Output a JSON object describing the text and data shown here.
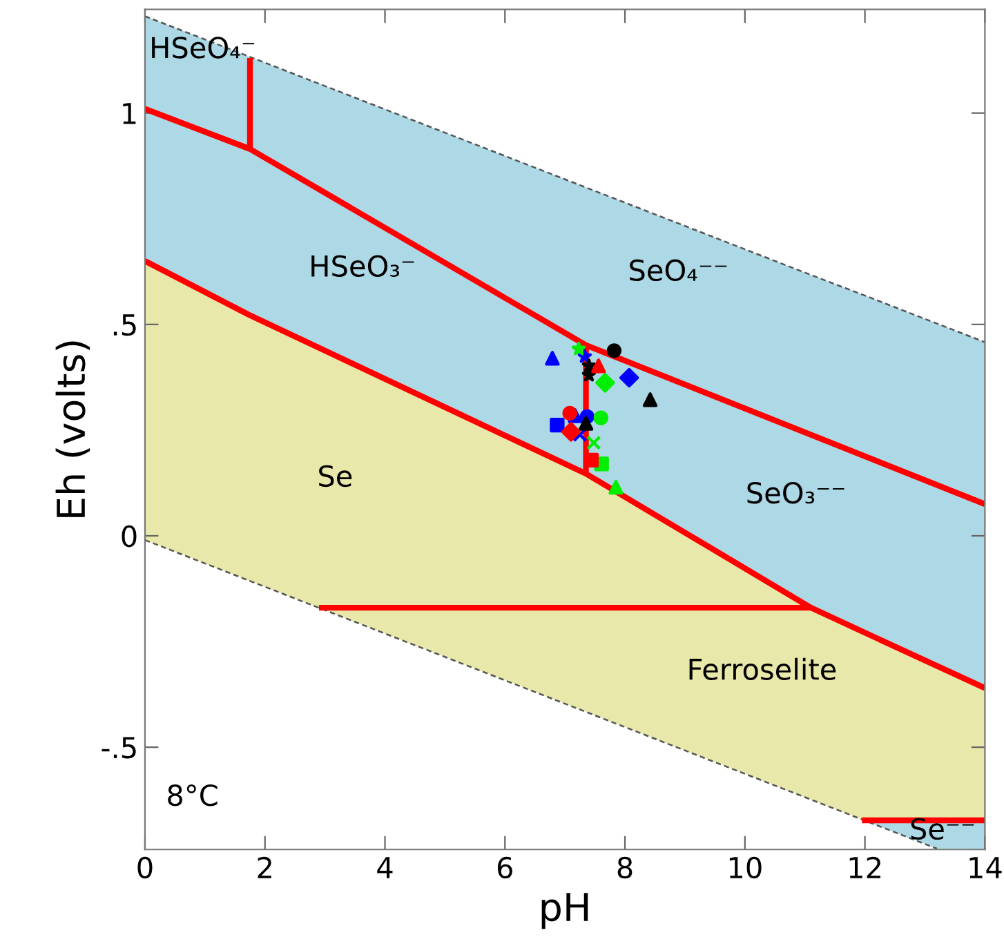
{
  "chart_data": {
    "type": "scatter",
    "xlabel": "pH",
    "ylabel": "Eh (volts)",
    "xlim": [
      0,
      14
    ],
    "ylim": [
      -0.742,
      1.245
    ],
    "xticks": [
      0,
      2,
      4,
      6,
      8,
      10,
      12,
      14
    ],
    "yticks": [
      {
        "value": -0.5,
        "label": "-.5"
      },
      0,
      {
        "value": 0.5,
        "label": ".5"
      },
      1
    ],
    "grid": false,
    "legend": false,
    "series": [
      {
        "type": "line",
        "color": "#555555",
        "line_style": "dashed",
        "x": [
          0,
          1.73,
          7.35,
          11.1,
          11.95,
          14
        ],
        "values": [
          1.229,
          1.134,
          0.824,
          0.617,
          0.571,
          0.458
        ],
        "lower": [
          0.65,
          0.523,
          0.147,
          -0.17,
          -0.226,
          -0.36
        ],
        "upper": [
          1.229,
          1.134,
          0.824,
          0.617,
          0.571,
          0.458
        ]
      },
      {
        "type": "line",
        "color": "#555555",
        "line_style": "dashed",
        "x": [
          0,
          13.2
        ],
        "values": [
          -0.01,
          -0.74
        ]
      },
      {
        "type": "line",
        "color": "#ff0000",
        "line_style": "solid",
        "x": [
          0,
          1.73,
          7.35,
          11.1,
          11.95,
          14
        ],
        "values": [
          0.65,
          0.523,
          0.147,
          -0.17,
          -0.226,
          -0.36
        ],
        "lower": [
          -0.01,
          -0.106,
          -0.416,
          -0.624,
          -0.671,
          -0.673
        ],
        "upper": [
          0.65,
          0.523,
          0.147,
          -0.17,
          -0.226,
          -0.36
        ]
      },
      {
        "type": "line",
        "color": "#ff0000",
        "line_style": "solid",
        "x": [
          11.95,
          13.2,
          14
        ],
        "values": [
          -0.673,
          -0.673,
          -0.673
        ],
        "lower": [
          -0.671,
          -0.74,
          -0.742
        ],
        "upper": [
          -0.673,
          -0.673,
          -0.673
        ]
      },
      {
        "type": "line",
        "color": "#ff0000",
        "line_style": "solid",
        "x": [
          0,
          1.75,
          7.35,
          14
        ],
        "values": [
          1.01,
          0.915,
          0.451,
          0.075
        ]
      },
      {
        "type": "line",
        "color": "#ff0000",
        "line_style": "solid",
        "x": [
          1.75,
          1.75
        ],
        "values": [
          0.915,
          1.13
        ]
      },
      {
        "type": "line",
        "color": "#ff0000",
        "line_style": "solid",
        "x": [
          7.35,
          7.35
        ],
        "values": [
          0.147,
          0.451
        ]
      },
      {
        "type": "line",
        "color": "#ff0000",
        "line_style": "solid",
        "x": [
          2.9,
          11.1
        ],
        "values": [
          -0.17,
          -0.17
        ]
      },
      {
        "color": "#0000ff",
        "marker": "triangle",
        "x": [
          6.79,
          7.17
        ],
        "values": [
          0.42,
          0.284
        ]
      },
      {
        "color": "#0000ff",
        "marker": "star",
        "x": [
          7.33
        ],
        "values": [
          0.424
        ]
      },
      {
        "color": "#0000ff",
        "marker": "diamond",
        "x": [
          8.07
        ],
        "values": [
          0.374
        ]
      },
      {
        "color": "#0000ff",
        "marker": "circle",
        "x": [
          7.37
        ],
        "values": [
          0.282
        ]
      },
      {
        "color": "#0000ff",
        "marker": "square",
        "x": [
          6.87
        ],
        "values": [
          0.262
        ]
      },
      {
        "color": "#0000ff",
        "marker": "cross",
        "x": [
          7.25
        ],
        "values": [
          0.239
        ]
      },
      {
        "color": "#00ee00",
        "marker": "star",
        "x": [
          7.23
        ],
        "values": [
          0.442
        ]
      },
      {
        "color": "#00ee00",
        "marker": "diamond",
        "x": [
          7.67
        ],
        "values": [
          0.362
        ]
      },
      {
        "color": "#00ee00",
        "marker": "circle",
        "x": [
          7.6
        ],
        "values": [
          0.279
        ]
      },
      {
        "color": "#00ee00",
        "marker": "cross",
        "x": [
          7.48
        ],
        "values": [
          0.22
        ]
      },
      {
        "color": "#00ee00",
        "marker": "square",
        "x": [
          7.61
        ],
        "values": [
          0.17
        ]
      },
      {
        "color": "#00ee00",
        "marker": "triangle",
        "x": [
          7.85
        ],
        "values": [
          0.115
        ]
      },
      {
        "color": "#000000",
        "marker": "circle",
        "x": [
          7.82
        ],
        "values": [
          0.438
        ]
      },
      {
        "color": "#000000",
        "marker": "star",
        "x": [
          7.4,
          7.4
        ],
        "values": [
          0.402,
          0.38
        ]
      },
      {
        "color": "#000000",
        "marker": "triangle",
        "x": [
          8.42,
          7.35
        ],
        "values": [
          0.322,
          0.266
        ]
      },
      {
        "color": "#ff0000",
        "marker": "triangle",
        "x": [
          7.56
        ],
        "values": [
          0.402
        ]
      },
      {
        "color": "#ff0000",
        "marker": "circle",
        "x": [
          7.08
        ],
        "values": [
          0.29
        ]
      },
      {
        "color": "#ff0000",
        "marker": "diamond",
        "x": [
          7.1
        ],
        "values": [
          0.246
        ]
      },
      {
        "color": "#ff0000",
        "marker": "square",
        "x": [
          7.44
        ],
        "values": [
          0.179
        ]
      }
    ],
    "annotations": [
      "HSeO₄⁻",
      "HSeO₃⁻",
      "SeO₄⁻⁻",
      "Se",
      "SeO₃⁻⁻",
      "Ferroselite",
      "Se⁻⁻",
      "8°C"
    ]
  }
}
